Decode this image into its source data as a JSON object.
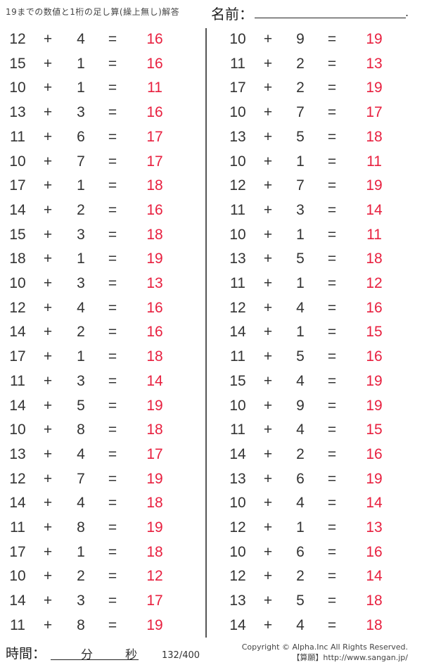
{
  "header": {
    "title": "19までの数値と1桁の足し算(繰上無し)解答",
    "name_label": "名前：",
    "name_end": "."
  },
  "symbols": {
    "plus": "+",
    "equals": "="
  },
  "colors": {
    "answer": "#e8203f",
    "text": "#333333"
  },
  "left": [
    [
      "12",
      "4",
      "16"
    ],
    [
      "15",
      "1",
      "16"
    ],
    [
      "10",
      "1",
      "11"
    ],
    [
      "13",
      "3",
      "16"
    ],
    [
      "11",
      "6",
      "17"
    ],
    [
      "10",
      "7",
      "17"
    ],
    [
      "17",
      "1",
      "18"
    ],
    [
      "14",
      "2",
      "16"
    ],
    [
      "15",
      "3",
      "18"
    ],
    [
      "18",
      "1",
      "19"
    ],
    [
      "10",
      "3",
      "13"
    ],
    [
      "12",
      "4",
      "16"
    ],
    [
      "14",
      "2",
      "16"
    ],
    [
      "17",
      "1",
      "18"
    ],
    [
      "11",
      "3",
      "14"
    ],
    [
      "14",
      "5",
      "19"
    ],
    [
      "10",
      "8",
      "18"
    ],
    [
      "13",
      "4",
      "17"
    ],
    [
      "12",
      "7",
      "19"
    ],
    [
      "14",
      "4",
      "18"
    ],
    [
      "11",
      "8",
      "19"
    ],
    [
      "17",
      "1",
      "18"
    ],
    [
      "10",
      "2",
      "12"
    ],
    [
      "14",
      "3",
      "17"
    ],
    [
      "11",
      "8",
      "19"
    ]
  ],
  "right": [
    [
      "10",
      "9",
      "19"
    ],
    [
      "11",
      "2",
      "13"
    ],
    [
      "17",
      "2",
      "19"
    ],
    [
      "10",
      "7",
      "17"
    ],
    [
      "13",
      "5",
      "18"
    ],
    [
      "10",
      "1",
      "11"
    ],
    [
      "12",
      "7",
      "19"
    ],
    [
      "11",
      "3",
      "14"
    ],
    [
      "10",
      "1",
      "11"
    ],
    [
      "13",
      "5",
      "18"
    ],
    [
      "11",
      "1",
      "12"
    ],
    [
      "12",
      "4",
      "16"
    ],
    [
      "14",
      "1",
      "15"
    ],
    [
      "11",
      "5",
      "16"
    ],
    [
      "15",
      "4",
      "19"
    ],
    [
      "10",
      "9",
      "19"
    ],
    [
      "11",
      "4",
      "15"
    ],
    [
      "14",
      "2",
      "16"
    ],
    [
      "13",
      "6",
      "19"
    ],
    [
      "10",
      "4",
      "14"
    ],
    [
      "12",
      "1",
      "13"
    ],
    [
      "10",
      "6",
      "16"
    ],
    [
      "12",
      "2",
      "14"
    ],
    [
      "13",
      "5",
      "18"
    ],
    [
      "14",
      "4",
      "18"
    ]
  ],
  "footer": {
    "time_label": "時間：",
    "minutes": "分",
    "seconds": "秒",
    "page": "132/400",
    "copyright": "Copyright © Alpha.Inc All Rights Reserved.",
    "site": "【算願】http://www.sangan.jp/"
  }
}
